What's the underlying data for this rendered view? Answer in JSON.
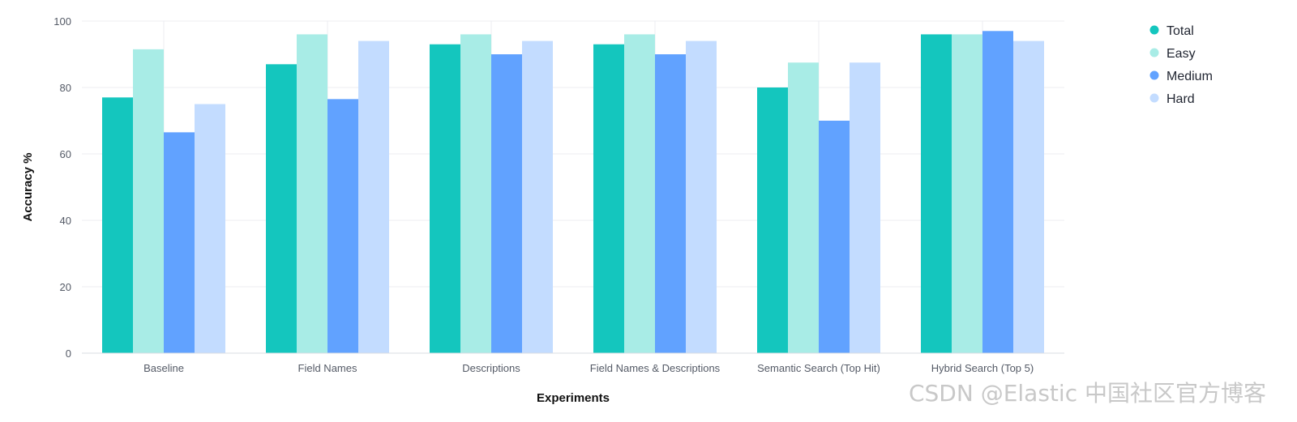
{
  "chart_data": {
    "type": "bar",
    "title": "",
    "xlabel": "Experiments",
    "ylabel": "Accuracy %",
    "ylim": [
      0,
      100
    ],
    "yticks": [
      0,
      20,
      40,
      60,
      80,
      100
    ],
    "grid": true,
    "legend_position": "top-right",
    "categories": [
      "Baseline",
      "Field Names",
      "Descriptions",
      "Field Names & Descriptions",
      "Semantic Search (Top Hit)",
      "Hybrid Search (Top 5)"
    ],
    "series": [
      {
        "name": "Total",
        "color": "#14c6be",
        "values": [
          77,
          87,
          93,
          93,
          80,
          96
        ]
      },
      {
        "name": "Easy",
        "color": "#a8ece6",
        "values": [
          91.5,
          96,
          96,
          96,
          87.5,
          96
        ]
      },
      {
        "name": "Medium",
        "color": "#61a2ff",
        "values": [
          66.5,
          76.5,
          90,
          90,
          70,
          97
        ]
      },
      {
        "name": "Hard",
        "color": "#c3dcff",
        "values": [
          75,
          94,
          94,
          94,
          87.5,
          94
        ]
      }
    ]
  },
  "watermark": "CSDN @Elastic 中国社区官方博客"
}
